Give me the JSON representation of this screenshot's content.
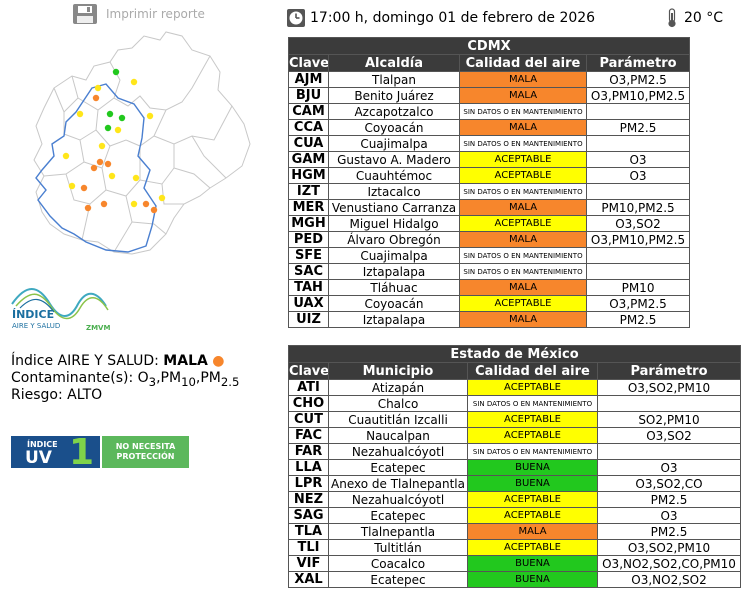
{
  "toolbar": {
    "print_label": "Imprimir reporte"
  },
  "header": {
    "datetime": "17:00 h, domingo 01 de febrero de 2026",
    "temperature": "20 °C"
  },
  "colors": {
    "MALA": "#f7862c",
    "ACEPTABLE": "#ffff00",
    "BUENA": "#22c81e"
  },
  "logo": {
    "text1": "ÍNDICE",
    "text2": "AIRE Y SALUD",
    "text3": "ZMVM"
  },
  "index": {
    "label": "Índice AIRE Y SALUD:",
    "value": "MALA",
    "contaminant_label": "Contaminante(s):",
    "contaminant_parts": [
      "O",
      "3",
      ",PM",
      "10",
      ",PM",
      "2.5"
    ],
    "risk_label": "Riesgo:",
    "risk_value": "ALTO"
  },
  "uv": {
    "label1": "ÍNDICE",
    "label2": "UV",
    "value": "1",
    "note1": "NO NECESITA",
    "note2": "PROTECCIÓN"
  },
  "cdmx": {
    "title": "CDMX",
    "headers": [
      "Clave",
      "Alcaldía",
      "Calidad del aire",
      "Parámetro"
    ],
    "rows": [
      {
        "code": "AJM",
        "name": "Tlalpan",
        "quality": "MALA",
        "param": "O3,PM2.5"
      },
      {
        "code": "BJU",
        "name": "Benito Juárez",
        "quality": "MALA",
        "param": "O3,PM10,PM2.5"
      },
      {
        "code": "CAM",
        "name": "Azcapotzalco",
        "quality": "SIN DATOS O EN MANTENIMIENTO",
        "param": ""
      },
      {
        "code": "CCA",
        "name": "Coyoacán",
        "quality": "MALA",
        "param": "PM2.5"
      },
      {
        "code": "CUA",
        "name": "Cuajimalpa",
        "quality": "SIN DATOS O EN MANTENIMIENTO",
        "param": ""
      },
      {
        "code": "GAM",
        "name": "Gustavo A. Madero",
        "quality": "ACEPTABLE",
        "param": "O3"
      },
      {
        "code": "HGM",
        "name": "Cuauhtémoc",
        "quality": "ACEPTABLE",
        "param": "O3"
      },
      {
        "code": "IZT",
        "name": "Iztacalco",
        "quality": "SIN DATOS O EN MANTENIMIENTO",
        "param": ""
      },
      {
        "code": "MER",
        "name": "Venustiano Carranza",
        "quality": "MALA",
        "param": "PM10,PM2.5"
      },
      {
        "code": "MGH",
        "name": "Miguel Hidalgo",
        "quality": "ACEPTABLE",
        "param": "O3,SO2"
      },
      {
        "code": "PED",
        "name": "Álvaro Obregón",
        "quality": "MALA",
        "param": "O3,PM10,PM2.5"
      },
      {
        "code": "SFE",
        "name": "Cuajimalpa",
        "quality": "SIN DATOS O EN MANTENIMIENTO",
        "param": ""
      },
      {
        "code": "SAC",
        "name": "Iztapalapa",
        "quality": "SIN DATOS O EN MANTENIMIENTO",
        "param": ""
      },
      {
        "code": "TAH",
        "name": "Tláhuac",
        "quality": "MALA",
        "param": "PM10"
      },
      {
        "code": "UAX",
        "name": "Coyoacán",
        "quality": "ACEPTABLE",
        "param": "O3,PM2.5"
      },
      {
        "code": "UIZ",
        "name": "Iztapalapa",
        "quality": "MALA",
        "param": "PM2.5"
      }
    ]
  },
  "edomex": {
    "title": "Estado de México",
    "headers": [
      "Clave",
      "Municipio",
      "Calidad del aire",
      "Parámetro"
    ],
    "rows": [
      {
        "code": "ATI",
        "name": "Atizapán",
        "quality": "ACEPTABLE",
        "param": "O3,SO2,PM10"
      },
      {
        "code": "CHO",
        "name": "Chalco",
        "quality": "SIN DATOS O EN MANTENIMIENTO",
        "param": ""
      },
      {
        "code": "CUT",
        "name": "Cuautitlán Izcalli",
        "quality": "ACEPTABLE",
        "param": "SO2,PM10"
      },
      {
        "code": "FAC",
        "name": "Naucalpan",
        "quality": "ACEPTABLE",
        "param": "O3,SO2"
      },
      {
        "code": "FAR",
        "name": "Nezahualcóyotl",
        "quality": "SIN DATOS O EN MANTENIMIENTO",
        "param": ""
      },
      {
        "code": "LLA",
        "name": "Ecatepec",
        "quality": "BUENA",
        "param": "O3"
      },
      {
        "code": "LPR",
        "name": "Anexo de Tlalnepantla",
        "quality": "BUENA",
        "param": "O3,SO2,CO"
      },
      {
        "code": "NEZ",
        "name": "Nezahualcóyotl",
        "quality": "ACEPTABLE",
        "param": "PM2.5"
      },
      {
        "code": "SAG",
        "name": "Ecatepec",
        "quality": "ACEPTABLE",
        "param": "O3"
      },
      {
        "code": "TLA",
        "name": "Tlalnepantla",
        "quality": "MALA",
        "param": "PM2.5"
      },
      {
        "code": "TLI",
        "name": "Tultitlán",
        "quality": "ACEPTABLE",
        "param": "O3,SO2,PM10"
      },
      {
        "code": "VIF",
        "name": "Coacalco",
        "quality": "BUENA",
        "param": "O3,NO2,SO2,CO,PM10"
      },
      {
        "code": "XAL",
        "name": "Ecatepec",
        "quality": "BUENA",
        "param": "O3,NO2,SO2"
      }
    ]
  }
}
